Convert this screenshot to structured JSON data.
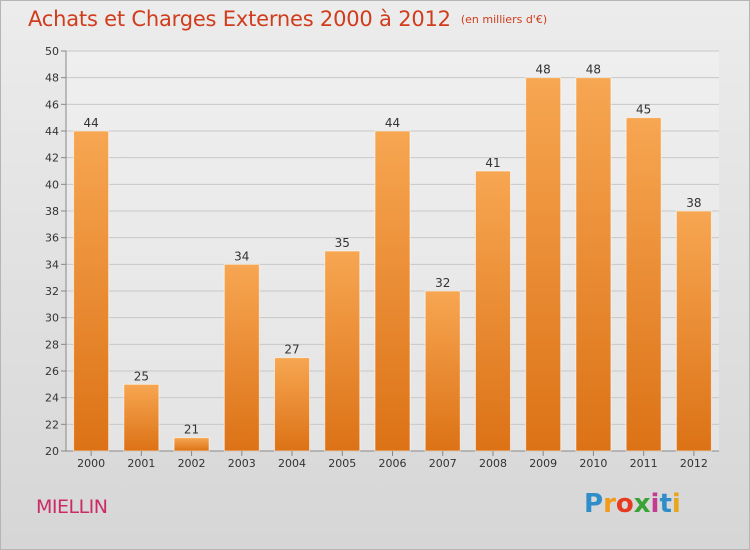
{
  "chart_data": {
    "type": "bar",
    "title": "Achats et Charges Externes 2000 à 2012",
    "subtitle": "(en milliers d'€)",
    "categories": [
      "2000",
      "2001",
      "2002",
      "2003",
      "2004",
      "2005",
      "2006",
      "2007",
      "2008",
      "2009",
      "2010",
      "2011",
      "2012"
    ],
    "values": [
      44,
      25,
      21,
      34,
      27,
      35,
      44,
      32,
      41,
      48,
      48,
      45,
      38
    ],
    "ylim": [
      20,
      50
    ],
    "yticks": [
      20,
      22,
      24,
      26,
      28,
      30,
      32,
      34,
      36,
      38,
      40,
      42,
      44,
      46,
      48,
      50
    ],
    "grid": true,
    "data_labels": true,
    "bar_color_top": "#f7a652",
    "bar_color_bottom": "#dc7216"
  },
  "footer": {
    "commune": "MIELLIN",
    "logo": {
      "letters": [
        "P",
        "r",
        "o",
        "x",
        "i",
        "t",
        "i"
      ],
      "colors": [
        "#2f8ec9",
        "#f29a1c",
        "#e63b1f",
        "#3aa335",
        "#c33b91",
        "#2f8ec9",
        "#e8a61c"
      ]
    }
  },
  "colors": {
    "title": "#d03c1c",
    "commune": "#cc2a66",
    "grid": "#c8c8c8",
    "axis_text": "#333333"
  }
}
